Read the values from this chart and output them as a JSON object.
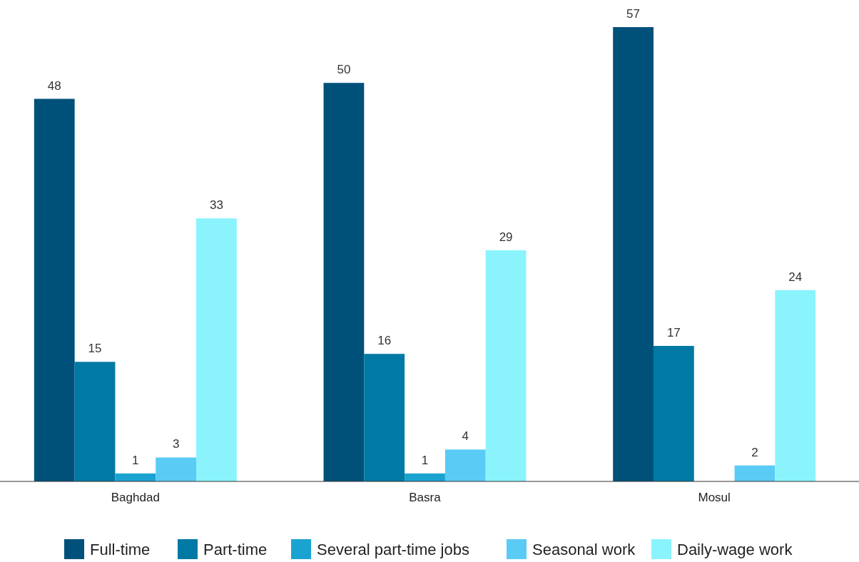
{
  "chart_data": {
    "type": "bar",
    "categories": [
      "Baghdad",
      "Basra",
      "Mosul"
    ],
    "series": [
      {
        "name": "Full-time",
        "color": "#00517a",
        "values": [
          48,
          50,
          57
        ]
      },
      {
        "name": "Part-time",
        "color": "#0079a5",
        "values": [
          15,
          16,
          17
        ]
      },
      {
        "name": "Several part-time jobs",
        "color": "#1aa3d1",
        "values": [
          1,
          1,
          null
        ]
      },
      {
        "name": "Seasonal work",
        "color": "#5acbf5",
        "values": [
          3,
          4,
          2
        ]
      },
      {
        "name": "Daily-wage work",
        "color": "#8af3fc",
        "values": [
          33,
          29,
          24
        ]
      }
    ],
    "data_labels": true,
    "legend": "bottom"
  }
}
